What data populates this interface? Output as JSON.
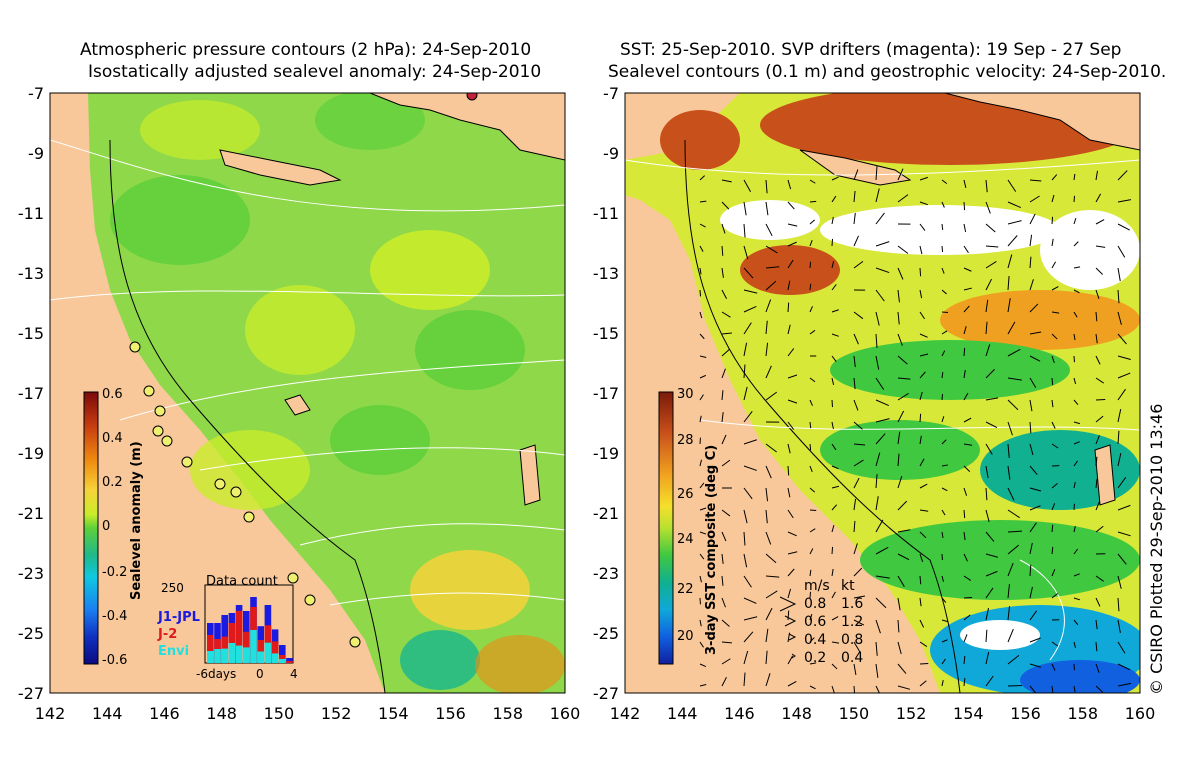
{
  "left_panel": {
    "title_line1": "Atmospheric pressure contours (2 hPa): 24-Sep-2010",
    "title_line2": "Isostatically adjusted sealevel anomaly: 24-Sep-2010",
    "y_ticks": [
      "-7",
      "-9",
      "-11",
      "-13",
      "-15",
      "-17",
      "-19",
      "-21",
      "-23",
      "-25",
      "-27"
    ],
    "x_ticks": [
      "142",
      "144",
      "146",
      "148",
      "150",
      "152",
      "154",
      "156",
      "158",
      "160"
    ],
    "colorbar": {
      "label": "Sealevel anomaly (m)",
      "ticks": [
        "0.6",
        "0.4",
        "0.2",
        "0",
        "-0.2",
        "-0.4",
        "-0.6"
      ],
      "colors": [
        "#7a0a0a",
        "#c43a10",
        "#f08a10",
        "#f7d23a",
        "#c9ec2a",
        "#5ed03a",
        "#1fb88a",
        "#10c8e0",
        "#1a7ff0",
        "#1030c0",
        "#0a0a80"
      ]
    },
    "inset": {
      "title": "Data count",
      "ymax_label": "250",
      "x_labels": [
        "-6days",
        "0",
        "4"
      ],
      "legend": [
        {
          "name": "J1-JPL",
          "color": "#1a1ae0"
        },
        {
          "name": "J-2",
          "color": "#e01a1a"
        },
        {
          "name": "Envi",
          "color": "#20e0e0"
        }
      ]
    }
  },
  "right_panel": {
    "title_line1": "SST: 25-Sep-2010. SVP drifters (magenta): 19 Sep - 27 Sep",
    "title_line2": "Sealevel contours (0.1 m) and geostrophic velocity: 24-Sep-2010.",
    "y_ticks": [
      "-7",
      "-9",
      "-11",
      "-13",
      "-15",
      "-17",
      "-19",
      "-21",
      "-23",
      "-25",
      "-27"
    ],
    "x_ticks": [
      "142",
      "144",
      "146",
      "148",
      "150",
      "152",
      "154",
      "156",
      "158",
      "160"
    ],
    "colorbar": {
      "label": "3-day SST composite (deg C)",
      "ticks": [
        "30",
        "28",
        "26",
        "24",
        "22",
        "20"
      ],
      "colors": [
        "#7a1a0a",
        "#c8501a",
        "#f0a020",
        "#f5e02a",
        "#b8e030",
        "#40c840",
        "#10b090",
        "#10a8d8",
        "#1060e0",
        "#1020a0"
      ]
    },
    "speed_legend": {
      "header_ms": "m/s",
      "header_kt": "kt",
      "rows": [
        {
          "ms": "0.8",
          "kt": "1.6"
        },
        {
          "ms": "0.6",
          "kt": "1.2"
        },
        {
          "ms": "0.4",
          "kt": "0.8"
        },
        {
          "ms": "0.2",
          "kt": "0.4"
        }
      ]
    },
    "credit": "© CSIRO Plotted 29-Sep-2010 13:46"
  },
  "colors": {
    "land": "#f8c89a",
    "ocean_left": "#8ed84a",
    "ocean_right": "#d8e838"
  }
}
